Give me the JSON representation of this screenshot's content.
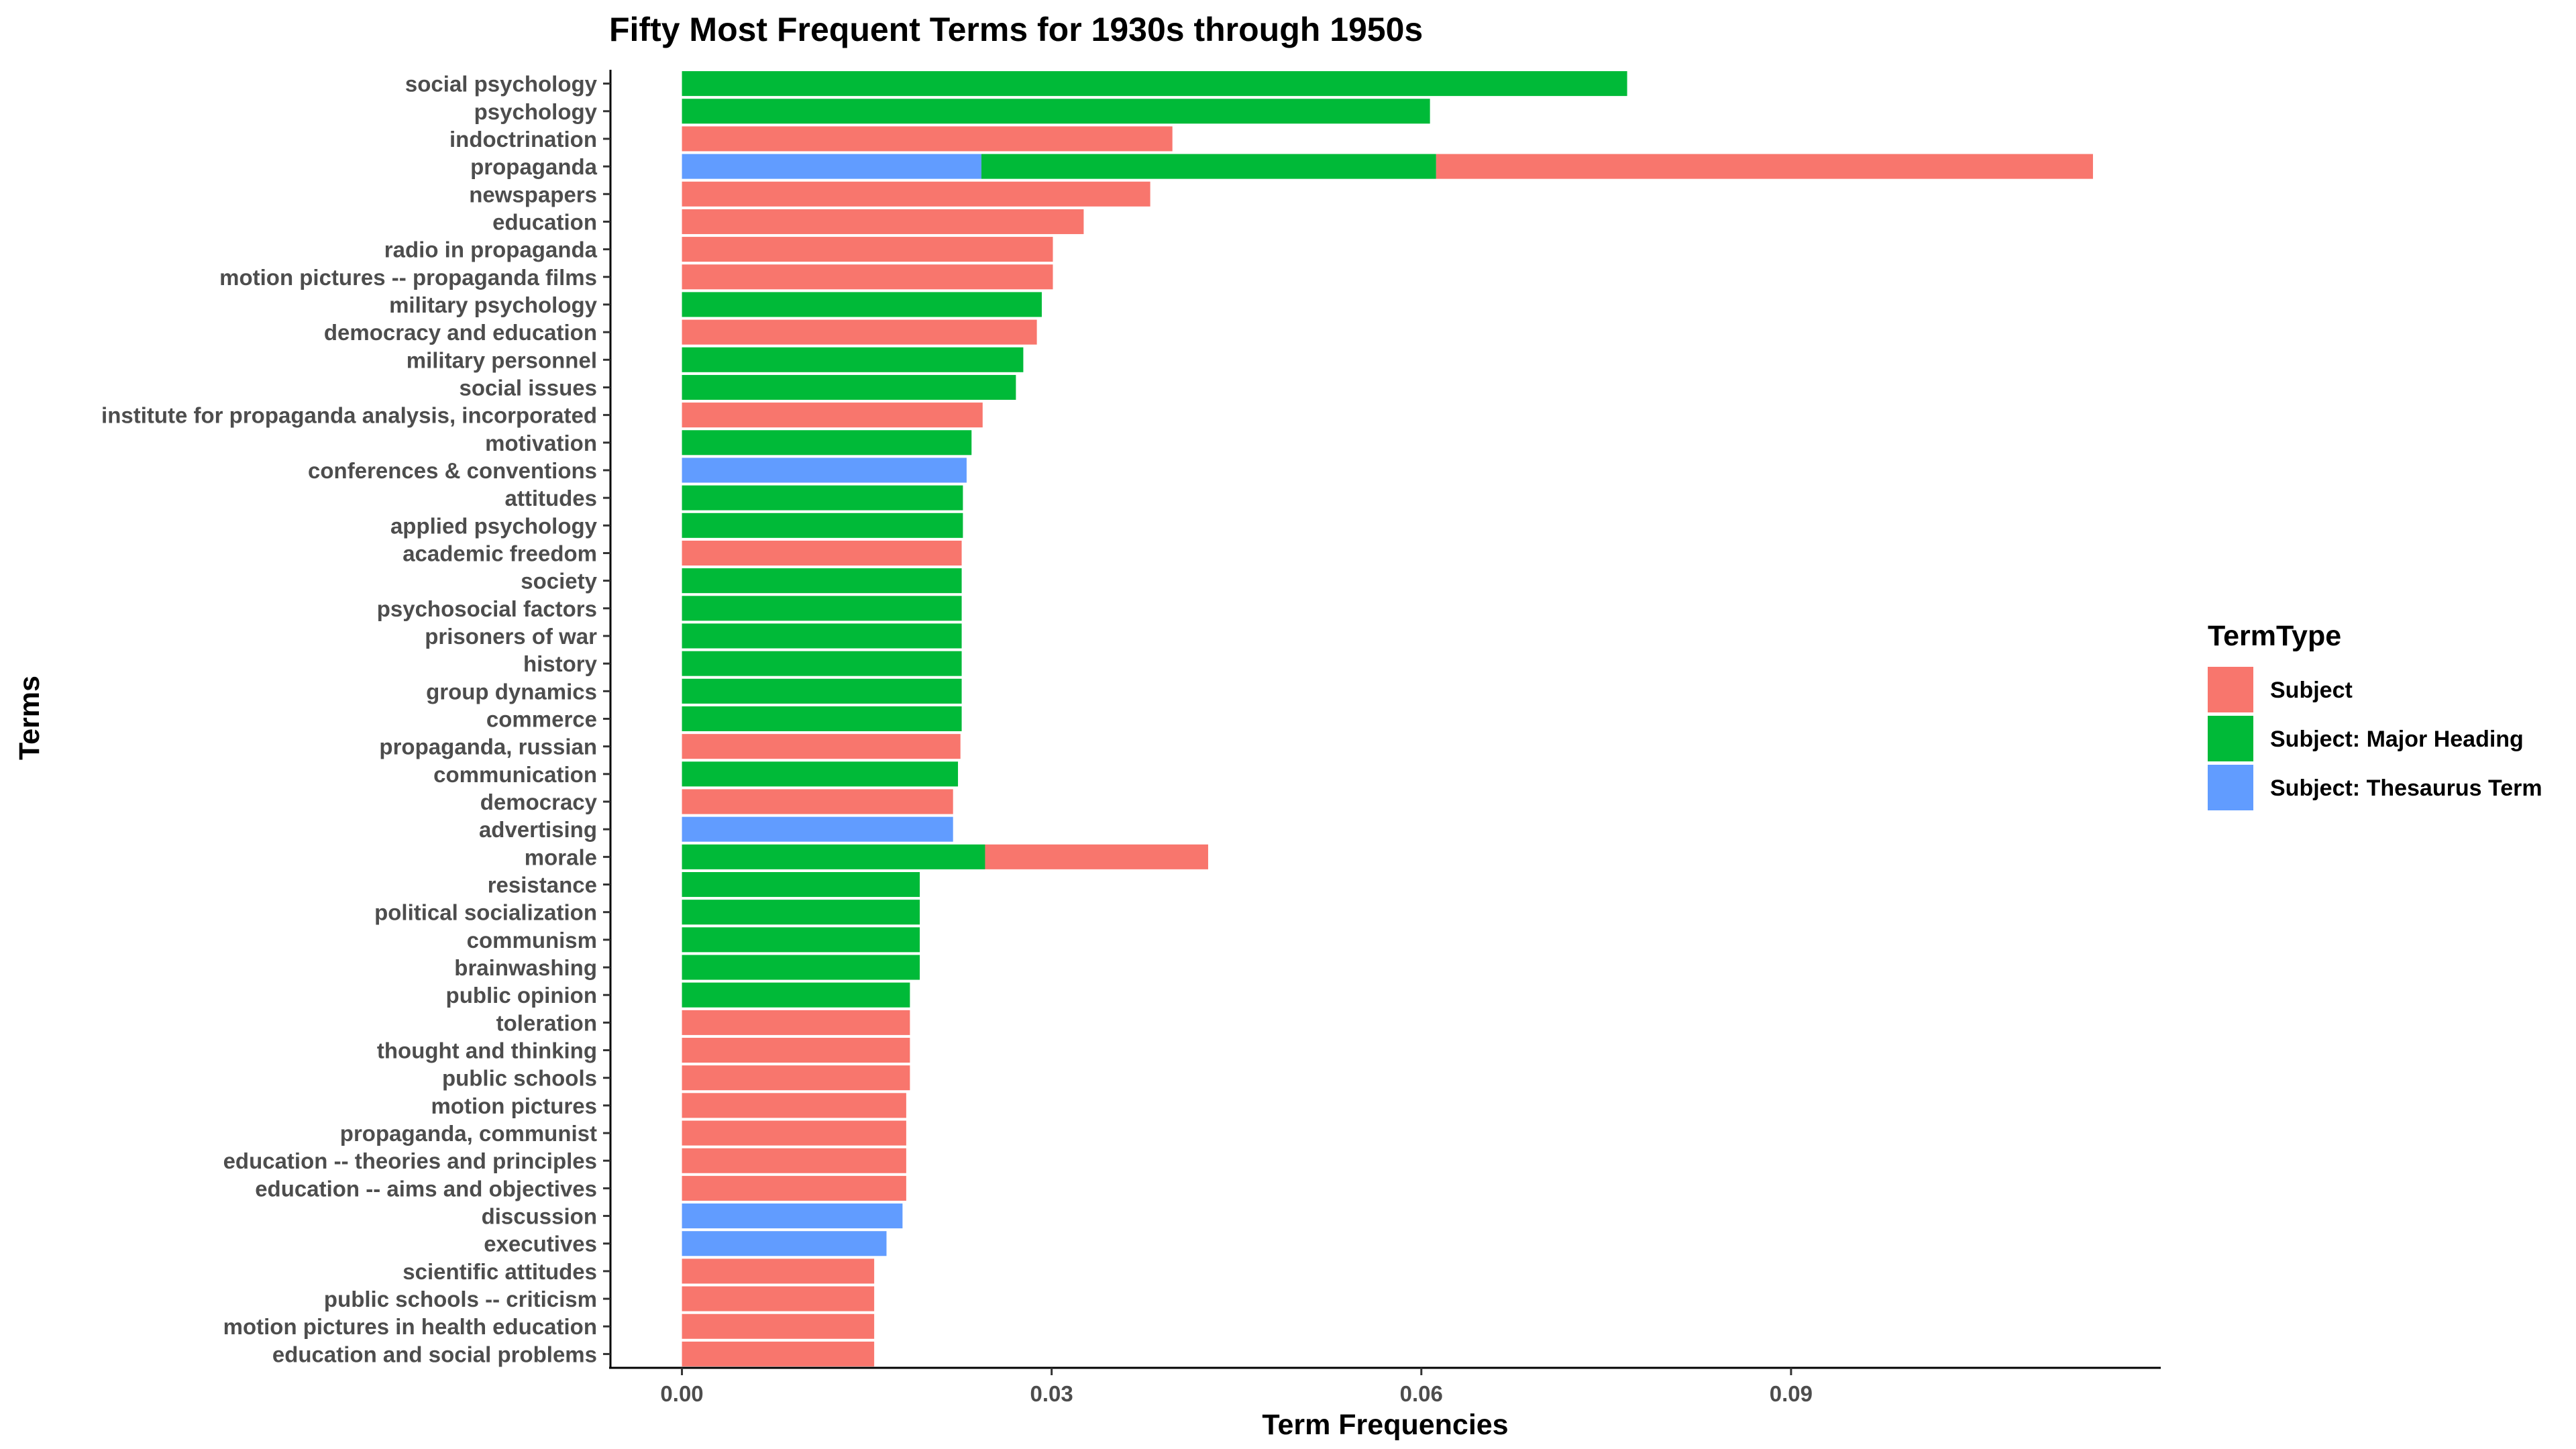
{
  "chart_data": {
    "type": "bar",
    "orientation": "horizontal",
    "stacked": true,
    "title": "Fifty Most Frequent Terms for 1930s through 1950s",
    "xlabel": "Term Frequencies",
    "ylabel": "Terms",
    "xlim": [
      -0.0058,
      0.12
    ],
    "xticks": [
      0.0,
      0.03,
      0.06,
      0.09
    ],
    "xtick_labels": [
      "0.00",
      "0.03",
      "0.06",
      "0.09"
    ],
    "grid": false,
    "legend": {
      "title": "TermType",
      "position": "right",
      "entries": [
        {
          "name": "Subject",
          "color": "#F8766D"
        },
        {
          "name": "Subject: Major Heading",
          "color": "#00BA38"
        },
        {
          "name": "Subject: Thesaurus Term",
          "color": "#619CFF"
        }
      ]
    },
    "categories": [
      "social psychology",
      "psychology",
      "indoctrination",
      "propaganda",
      "newspapers",
      "education",
      "radio in propaganda",
      "motion pictures -- propaganda films",
      "military psychology",
      "democracy and education",
      "military personnel",
      "social issues",
      "institute for propaganda analysis, incorporated",
      "motivation",
      "conferences & conventions",
      "attitudes",
      "applied psychology",
      "academic freedom",
      "society",
      "psychosocial factors",
      "prisoners of war",
      "history",
      "group dynamics",
      "commerce",
      "propaganda, russian",
      "communication",
      "democracy",
      "advertising",
      "morale",
      "resistance",
      "political socialization",
      "communism",
      "brainwashing",
      "public opinion",
      "toleration",
      "thought and thinking",
      "public schools",
      "motion pictures",
      "propaganda, communist",
      "education -- theories and principles",
      "education -- aims and objectives",
      "discussion",
      "executives",
      "scientific attitudes",
      "public schools -- criticism",
      "motion pictures in health education",
      "education and social problems"
    ],
    "series": [
      {
        "name": "Subject: Thesaurus Term",
        "color": "#619CFF",
        "values": [
          0,
          0,
          0,
          0.0243,
          0,
          0,
          0,
          0,
          0,
          0,
          0,
          0,
          0,
          0,
          0.0231,
          0,
          0,
          0,
          0,
          0,
          0,
          0,
          0,
          0,
          0,
          0,
          0,
          0.022,
          0,
          0,
          0,
          0,
          0,
          0,
          0,
          0,
          0,
          0,
          0,
          0,
          0,
          0.0179,
          0.0166,
          0,
          0,
          0,
          0
        ]
      },
      {
        "name": "Subject: Major Heading",
        "color": "#00BA38",
        "values": [
          0.0767,
          0.0607,
          0,
          0.0369,
          0,
          0,
          0,
          0,
          0.0292,
          0,
          0.0277,
          0.0271,
          0,
          0.0235,
          0,
          0.0228,
          0.0228,
          0,
          0.0227,
          0.0227,
          0.0227,
          0.0227,
          0.0227,
          0.0227,
          0,
          0.0224,
          0,
          0,
          0.0246,
          0.0193,
          0.0193,
          0.0193,
          0.0193,
          0.0185,
          0,
          0,
          0,
          0,
          0,
          0,
          0,
          0,
          0,
          0,
          0,
          0,
          0
        ]
      },
      {
        "name": "Subject",
        "color": "#F8766D",
        "values": [
          0,
          0,
          0.0398,
          0.0533,
          0.038,
          0.0326,
          0.0301,
          0.0301,
          0,
          0.0288,
          0,
          0,
          0.0244,
          0,
          0,
          0,
          0,
          0.0227,
          0,
          0,
          0,
          0,
          0,
          0,
          0.0226,
          0,
          0.022,
          0,
          0.0181,
          0,
          0,
          0,
          0,
          0,
          0.0185,
          0.0185,
          0.0185,
          0.0182,
          0.0182,
          0.0182,
          0.0182,
          0,
          0,
          0.0156,
          0.0156,
          0.0156,
          0.0156
        ]
      }
    ]
  }
}
